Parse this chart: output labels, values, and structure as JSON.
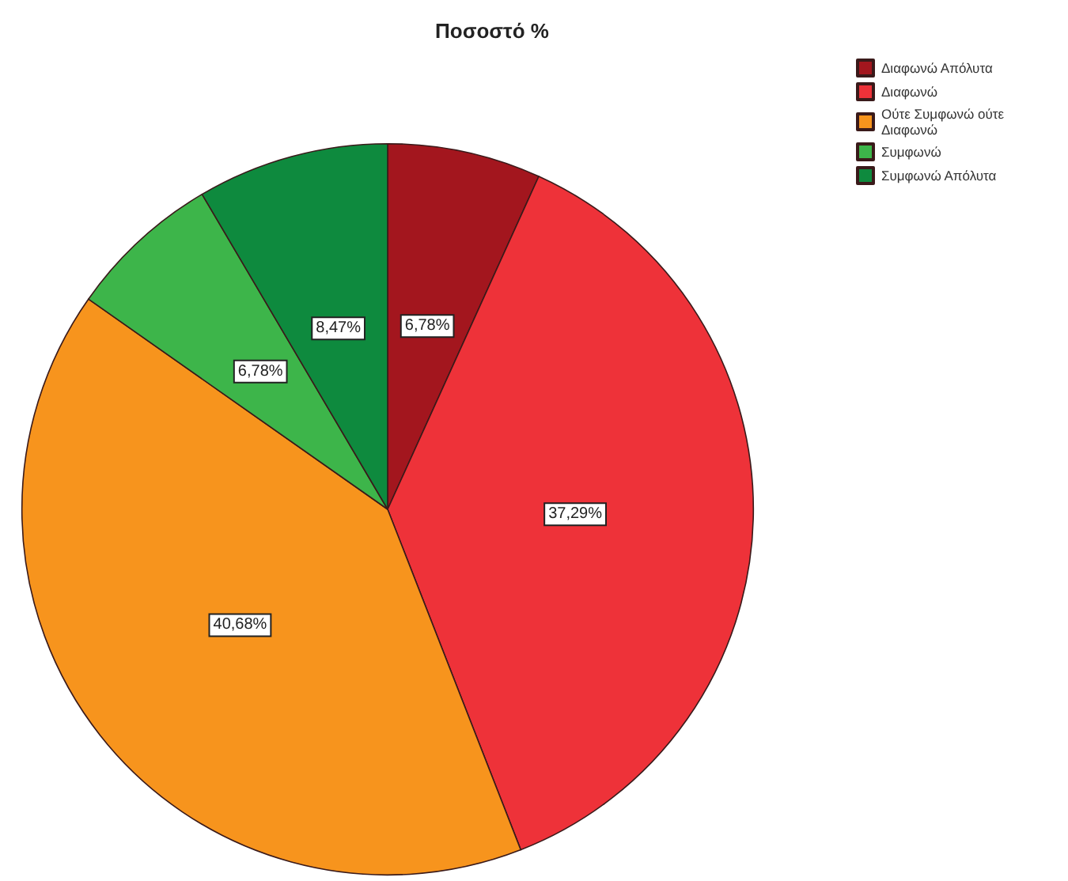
{
  "chart_data": {
    "type": "pie",
    "title": "Ποσοστό %",
    "categories": [
      "Διαφωνώ Απόλυτα",
      "Διαφωνώ",
      "Ούτε Συμφωνώ ούτε Διαφωνώ",
      "Συμφωνώ",
      "Συμφωνώ Απόλυτα"
    ],
    "values": [
      6.78,
      37.29,
      40.68,
      6.78,
      8.47
    ],
    "colors": [
      "#a3161e",
      "#ee3239",
      "#f7941d",
      "#3db54a",
      "#0e8a3e"
    ],
    "value_labels": [
      "6,78%",
      "37,29%",
      "40,68%",
      "6,78%",
      "8,47%"
    ],
    "legend": "top right"
  }
}
